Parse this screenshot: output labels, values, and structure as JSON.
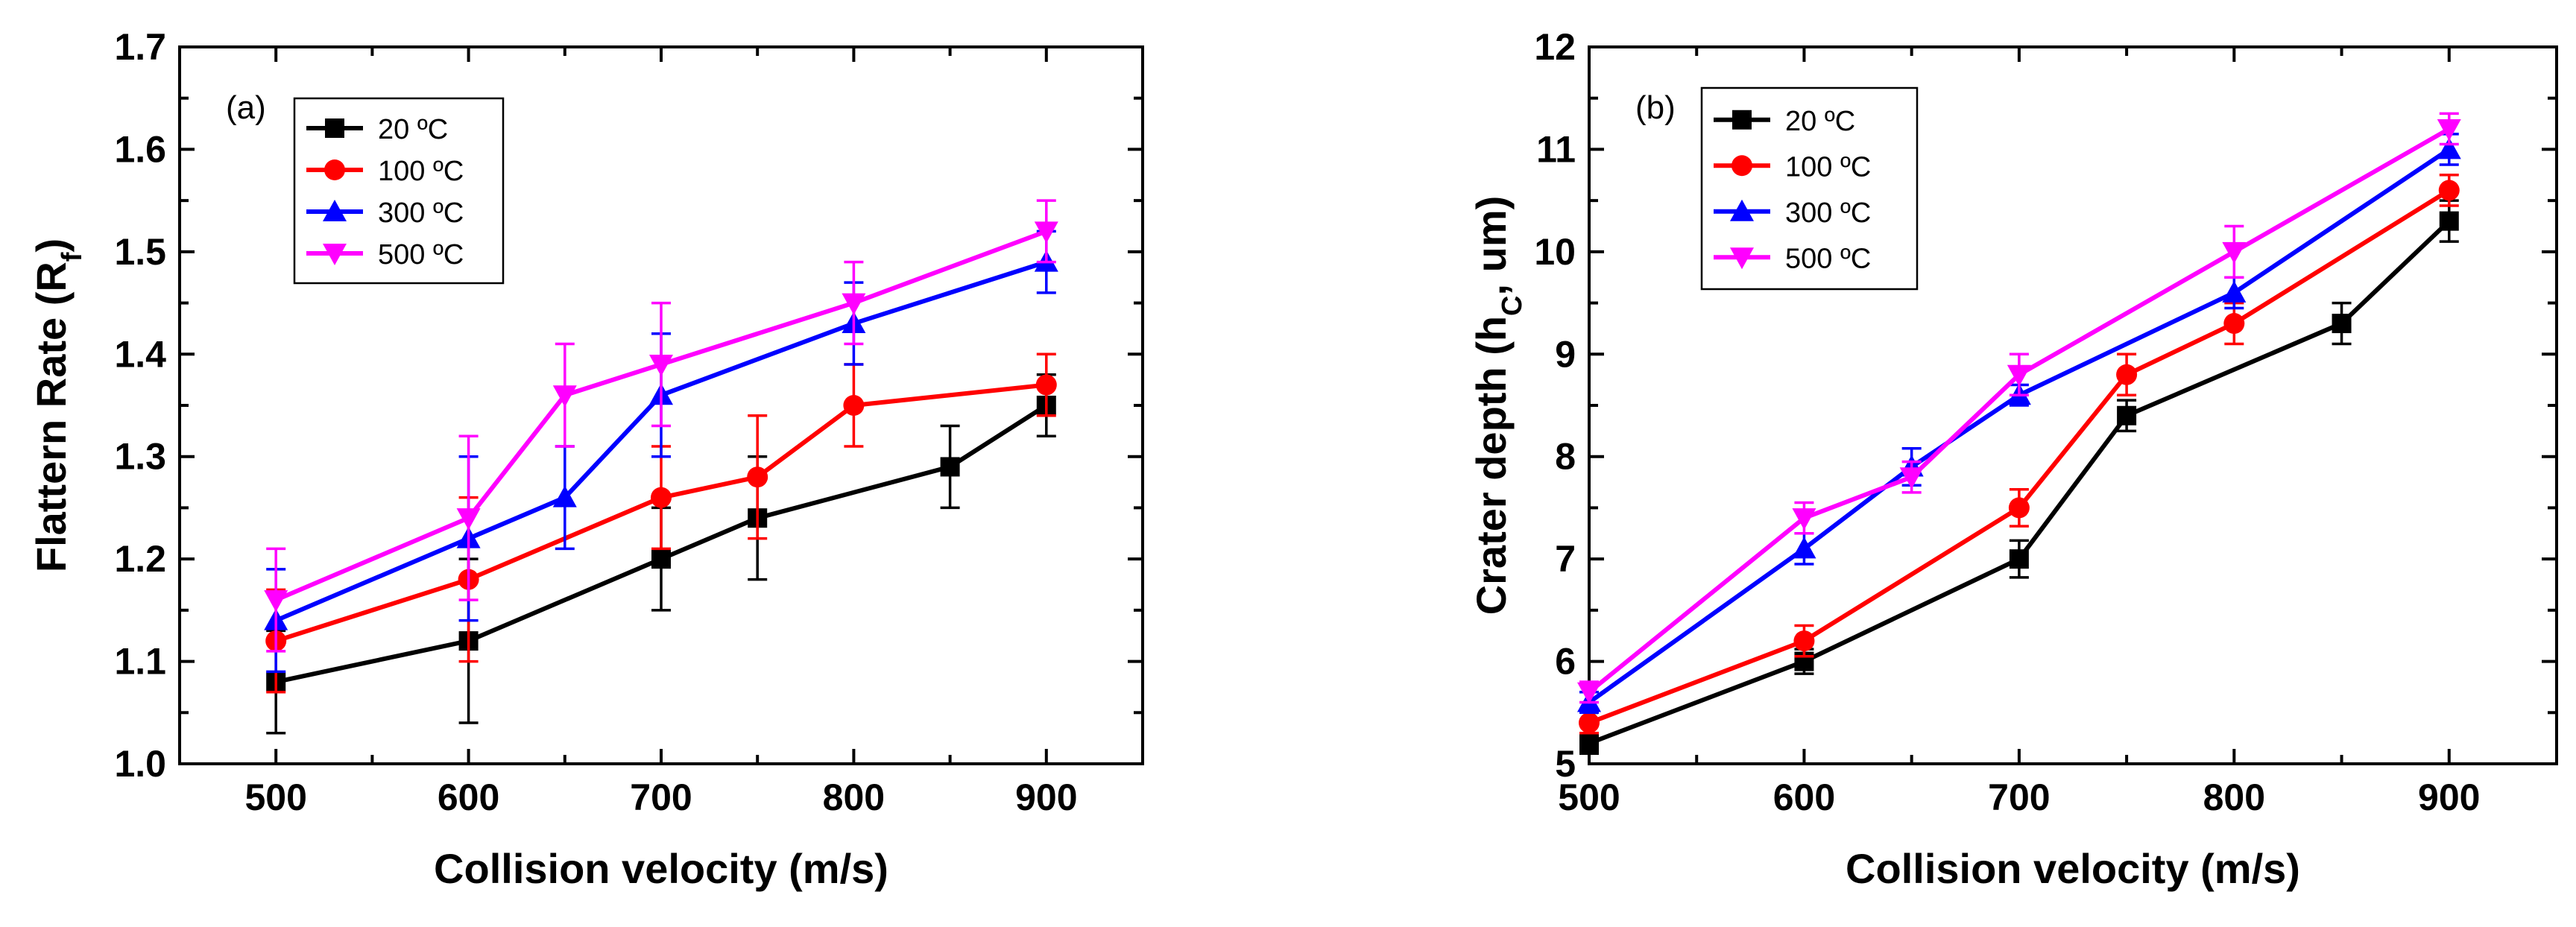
{
  "chart_data": [
    {
      "type": "line",
      "panel_label": "(a)",
      "title": "",
      "xlabel": "Collision velocity (m/s)",
      "ylabel": "Flattern Rate (R",
      "ylabel_sub": "f",
      "ylabel_close": ")",
      "xlim": [
        450,
        950
      ],
      "ylim": [
        1.0,
        1.7
      ],
      "xticks": [
        500,
        600,
        700,
        800,
        900
      ],
      "xtick_labels": [
        "500",
        "600",
        "700",
        "800",
        "900"
      ],
      "yticks": [
        1.0,
        1.1,
        1.2,
        1.3,
        1.4,
        1.5,
        1.6,
        1.7
      ],
      "ytick_labels": [
        "1.0",
        "1.1",
        "1.2",
        "1.3",
        "1.4",
        "1.5",
        "1.6",
        "1.7"
      ],
      "legend_position": "top-left",
      "series": [
        {
          "name": "20 ºC",
          "color": "#000000",
          "marker": "square",
          "x": [
            500,
            600,
            700,
            750,
            850,
            900
          ],
          "y": [
            1.08,
            1.12,
            1.2,
            1.24,
            1.29,
            1.35
          ],
          "err": [
            0.05,
            0.08,
            0.05,
            0.06,
            0.04,
            0.03
          ]
        },
        {
          "name": "100 ºC",
          "color": "#ff0000",
          "marker": "circle",
          "x": [
            500,
            600,
            700,
            750,
            800,
            900
          ],
          "y": [
            1.12,
            1.18,
            1.26,
            1.28,
            1.35,
            1.37
          ],
          "err": [
            0.05,
            0.08,
            0.05,
            0.06,
            0.04,
            0.03
          ]
        },
        {
          "name": "300 ºC",
          "color": "#0000ff",
          "marker": "triangle-up",
          "x": [
            500,
            600,
            650,
            700,
            800,
            900
          ],
          "y": [
            1.14,
            1.22,
            1.26,
            1.36,
            1.43,
            1.49
          ],
          "err": [
            0.05,
            0.08,
            0.05,
            0.06,
            0.04,
            0.03
          ]
        },
        {
          "name": "500 ºC",
          "color": "#ff00ff",
          "marker": "triangle-down",
          "x": [
            500,
            600,
            650,
            700,
            800,
            900
          ],
          "y": [
            1.16,
            1.24,
            1.36,
            1.39,
            1.45,
            1.52
          ],
          "err": [
            0.05,
            0.08,
            0.05,
            0.06,
            0.04,
            0.03
          ]
        }
      ]
    },
    {
      "type": "line",
      "panel_label": "(b)",
      "title": "",
      "xlabel": "Collision velocity (m/s)",
      "ylabel": "Crater depth (h",
      "ylabel_sub": "C",
      "ylabel_close": ", um)",
      "xlim": [
        500,
        950
      ],
      "ylim": [
        5,
        12
      ],
      "xticks": [
        500,
        600,
        700,
        800,
        900
      ],
      "xtick_labels": [
        "500",
        "600",
        "700",
        "800",
        "900"
      ],
      "yticks": [
        5,
        6,
        7,
        8,
        9,
        10,
        11,
        12
      ],
      "ytick_labels": [
        "5",
        "6",
        "7",
        "8",
        "9",
        "10",
        "11",
        "12"
      ],
      "legend_position": "top-left",
      "series": [
        {
          "name": "20 ºC",
          "color": "#000000",
          "marker": "square",
          "x": [
            500,
            600,
            700,
            750,
            850,
            900
          ],
          "y": [
            5.2,
            6.0,
            7.0,
            8.4,
            9.3,
            10.3
          ],
          "err": [
            0.1,
            0.12,
            0.18,
            0.15,
            0.2,
            0.2
          ]
        },
        {
          "name": "100 ºC",
          "color": "#ff0000",
          "marker": "circle",
          "x": [
            500,
            600,
            700,
            750,
            800,
            900
          ],
          "y": [
            5.4,
            6.2,
            7.5,
            8.8,
            9.3,
            10.6
          ],
          "err": [
            0.1,
            0.15,
            0.18,
            0.2,
            0.2,
            0.15
          ]
        },
        {
          "name": "300 ºC",
          "color": "#0000ff",
          "marker": "triangle-up",
          "x": [
            500,
            600,
            650,
            700,
            800,
            900
          ],
          "y": [
            5.6,
            7.1,
            7.9,
            8.6,
            9.6,
            11.0
          ],
          "err": [
            0.1,
            0.15,
            0.18,
            0.1,
            0.15,
            0.15
          ]
        },
        {
          "name": "500 ºC",
          "color": "#ff00ff",
          "marker": "triangle-down",
          "x": [
            500,
            600,
            650,
            700,
            800,
            900
          ],
          "y": [
            5.7,
            7.4,
            7.8,
            8.8,
            10.0,
            11.2
          ],
          "err": [
            0.1,
            0.15,
            0.15,
            0.2,
            0.25,
            0.15
          ]
        }
      ]
    }
  ]
}
